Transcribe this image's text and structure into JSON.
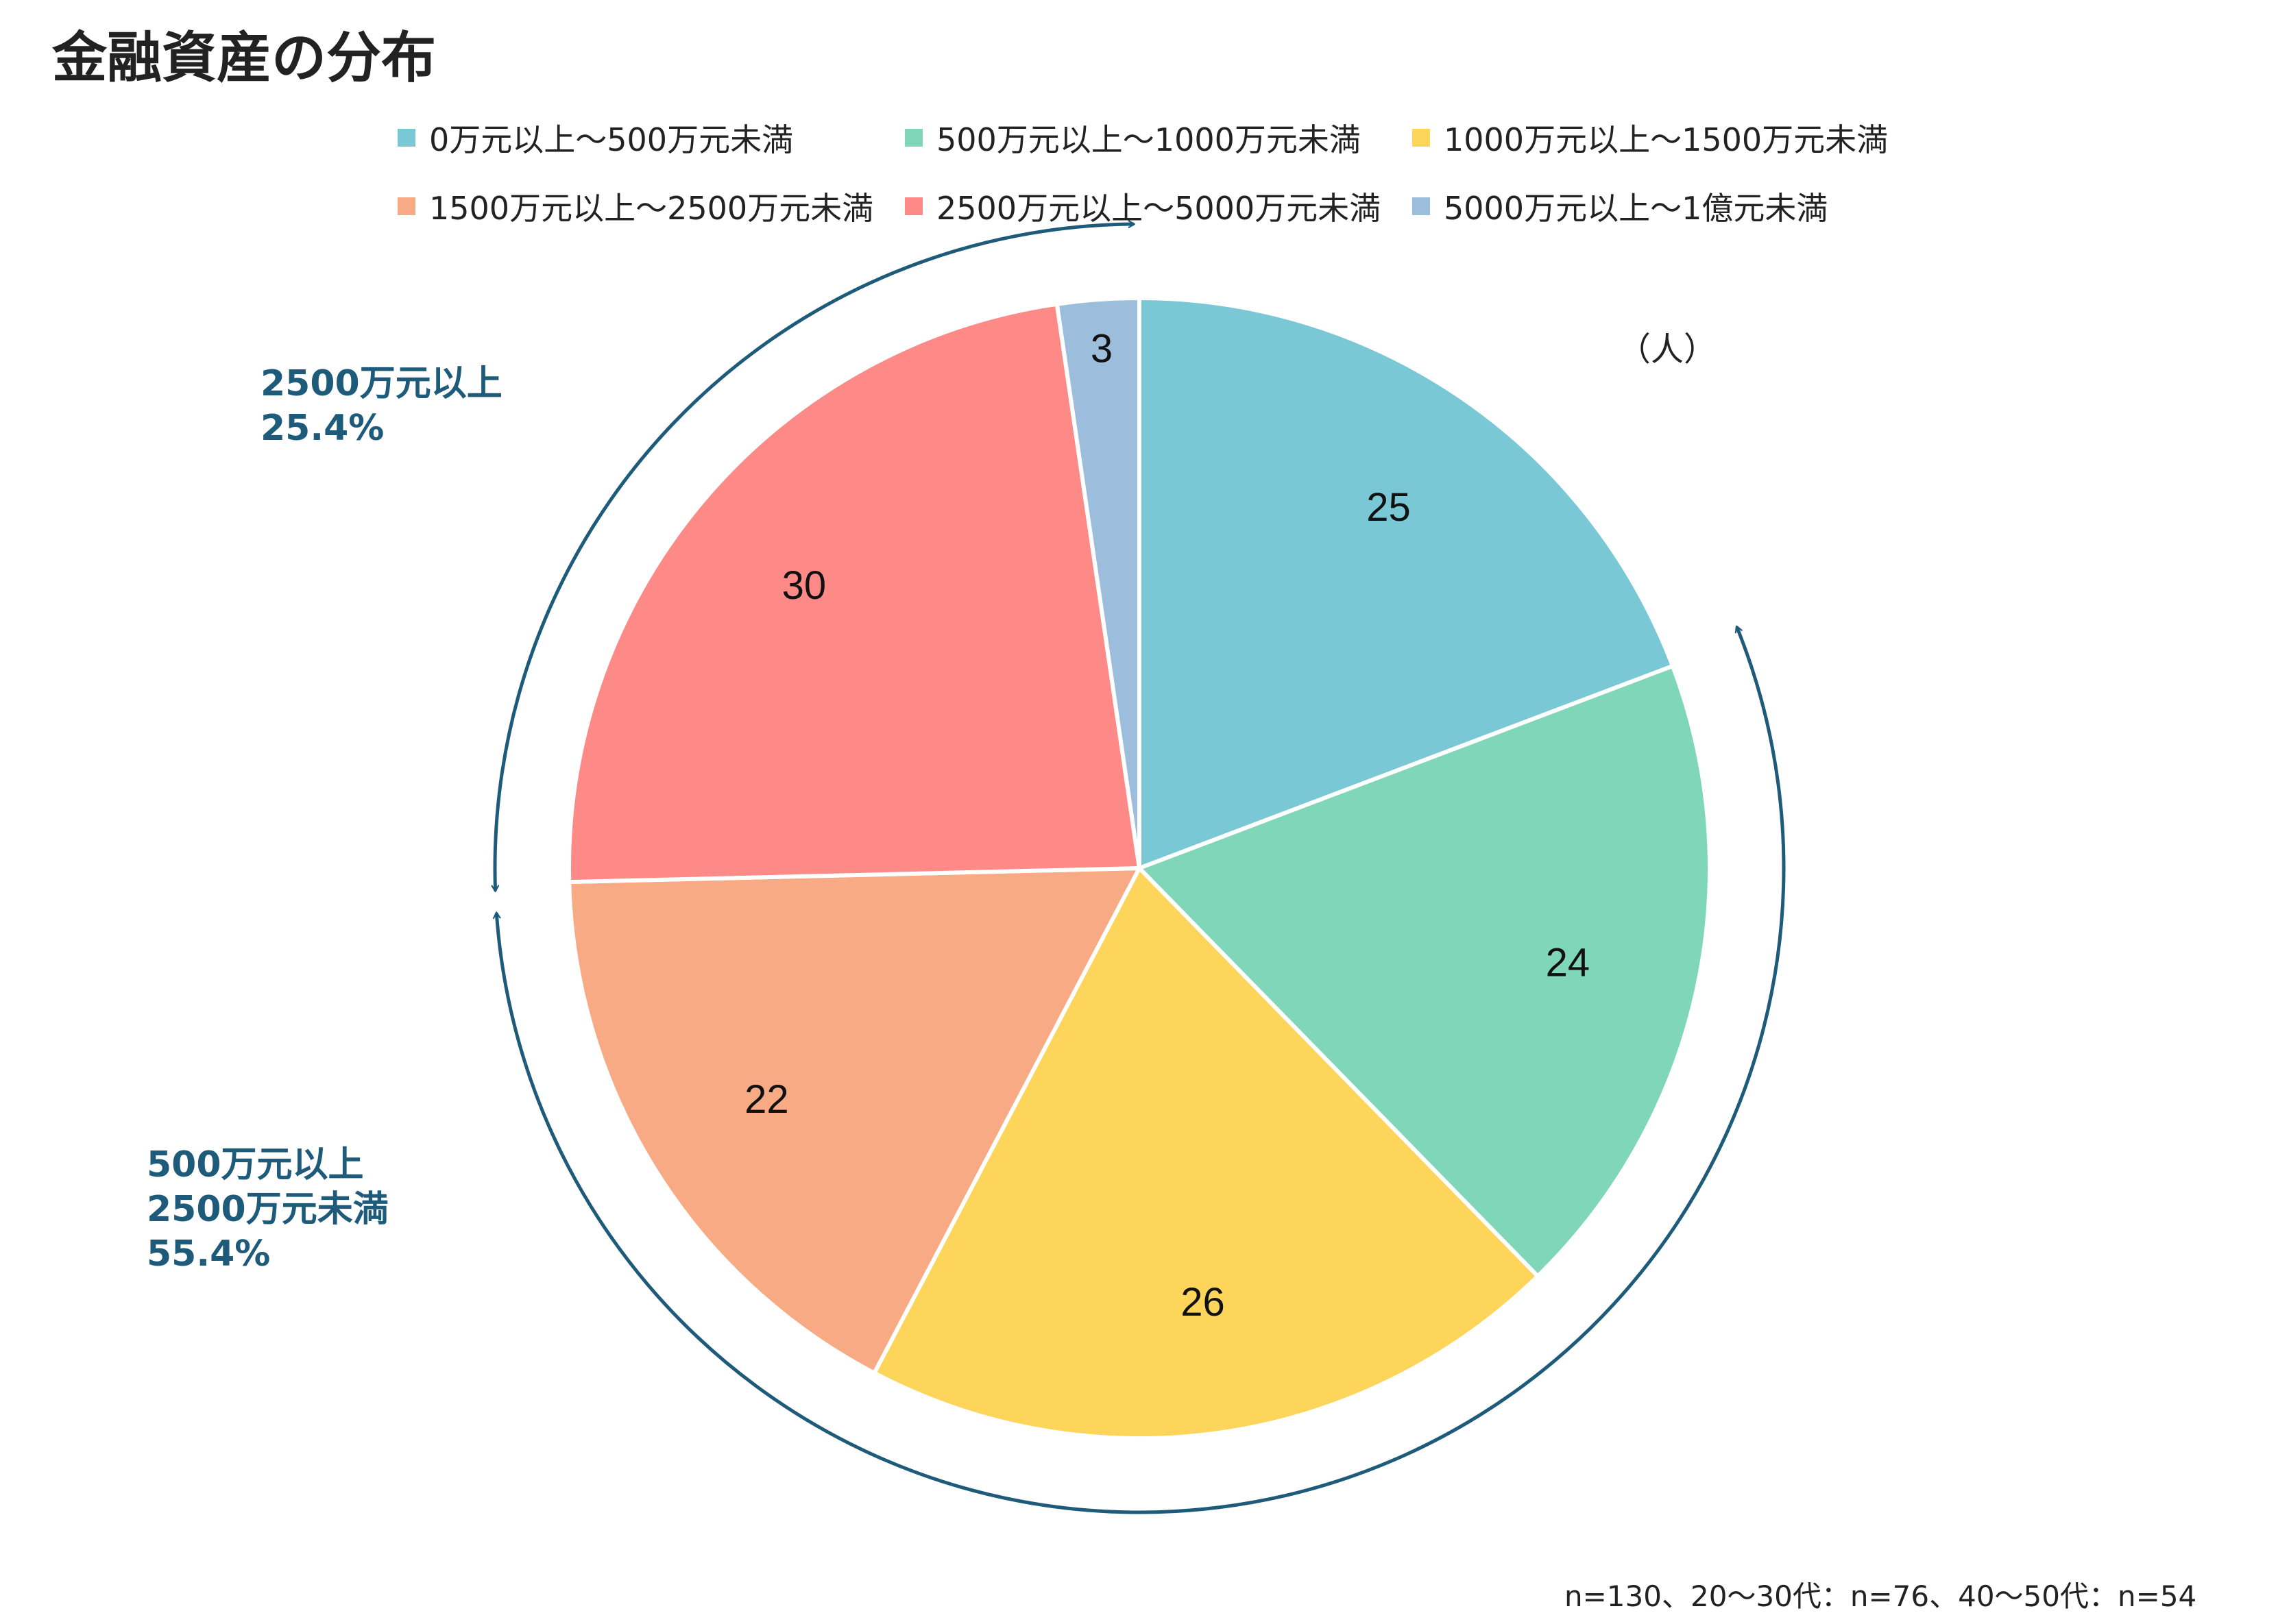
{
  "title": "金融資産の分布",
  "unit": "（人）",
  "chart_data": {
    "type": "pie",
    "title": "金融資産の分布",
    "unit": "人",
    "start": "12 o'clock, clockwise",
    "categories": [
      "0万元以上～500万元未満",
      "500万元以上～1000万元未満",
      "1000万元以上～1500万元未満",
      "1500万元以上～2500万元未満",
      "2500万元以上～5000万元未満",
      "5000万元以上～1億元未満"
    ],
    "values": [
      25,
      24,
      26,
      22,
      30,
      3
    ],
    "colors": [
      "#7ac8d6",
      "#80d6b8",
      "#fdd55a",
      "#f7aa84",
      "#fd8a87",
      "#9cbedc"
    ],
    "legend_position": "top",
    "annotations": [
      {
        "lines": [
          "2500万元以上",
          "25.4%"
        ],
        "color": "#1e5b7a"
      },
      {
        "lines": [
          "500万元以上",
          "2500万元未満",
          "55.4%"
        ],
        "color": "#1e5b7a"
      }
    ]
  },
  "footnote": "n=130、20～30代：n=76、40～50代：n=54"
}
